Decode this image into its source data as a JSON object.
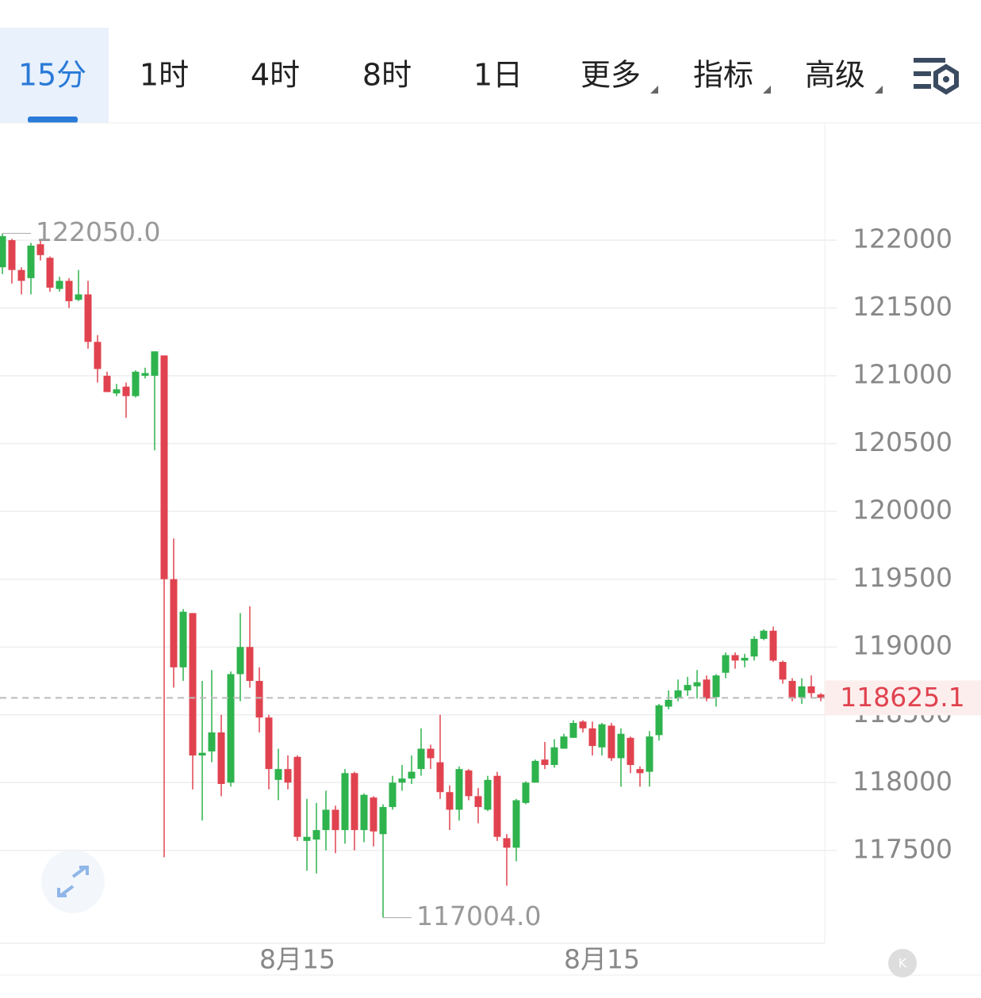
{
  "tabs": [
    "15分",
    "1时",
    "4时",
    "8时",
    "1日",
    "更多",
    "指标",
    "高级"
  ],
  "chart_data": {
    "type": "candlestick",
    "categories": [
      null,
      null,
      null,
      null,
      null,
      null,
      null,
      null,
      null,
      null,
      null,
      null,
      null,
      null,
      null,
      null,
      null,
      null,
      null,
      null,
      null,
      null,
      null,
      null,
      null,
      null,
      null,
      null,
      null,
      null,
      null,
      "8月15",
      null,
      null,
      null,
      null,
      null,
      null,
      null,
      null,
      null,
      null,
      null,
      null,
      null,
      null,
      null,
      null,
      null,
      null,
      null,
      null,
      null,
      null,
      null,
      null,
      null,
      null,
      null,
      null,
      null,
      null,
      null,
      "8月15",
      null,
      null,
      null,
      null,
      null,
      null,
      null,
      null,
      null,
      null,
      null,
      null,
      null,
      null,
      null,
      null,
      null,
      null,
      null,
      null,
      null,
      null,
      null
    ],
    "open": [
      121800,
      122000,
      121780,
      121720,
      121970,
      121870,
      121640,
      121700,
      121560,
      121600,
      121250,
      121000,
      120870,
      120920,
      120850,
      121000,
      121000,
      121150,
      119500,
      118850,
      119250,
      118200,
      118230,
      118370,
      118000,
      118800,
      119000,
      118750,
      118480,
      118020,
      118100,
      118190,
      117570,
      117580,
      117650,
      117800,
      117650,
      118070,
      117650,
      117890,
      117620,
      117820,
      118000,
      118030,
      118100,
      118250,
      118150,
      117930,
      117800,
      118090,
      117900,
      117800,
      118050,
      117590,
      117520,
      117850,
      118000,
      118170,
      118130,
      118250,
      118330,
      118450,
      118400,
      118260,
      118420,
      118180,
      118330,
      118100,
      118080,
      118350,
      118560,
      118620,
      118680,
      118710,
      118760,
      118630,
      118810,
      118940,
      118900,
      118930,
      119060,
      119120,
      118890,
      118750,
      118630,
      118710,
      118650
    ],
    "high": [
      122050,
      122010,
      121800,
      121980,
      122000,
      121880,
      121730,
      121720,
      121780,
      121700,
      121300,
      121030,
      120940,
      120950,
      121040,
      121060,
      121180,
      121150,
      119800,
      119280,
      119250,
      118750,
      118830,
      118500,
      118820,
      119250,
      119300,
      118850,
      118500,
      118250,
      118200,
      118200,
      117880,
      117850,
      117940,
      117830,
      118100,
      118080,
      117920,
      117900,
      117840,
      118050,
      118130,
      118200,
      118400,
      118280,
      118500,
      117980,
      118120,
      118100,
      117960,
      118050,
      118080,
      117620,
      117880,
      118010,
      118170,
      118300,
      118320,
      118360,
      118460,
      118460,
      118450,
      118440,
      118440,
      118400,
      118340,
      118120,
      118380,
      118580,
      118680,
      118760,
      118780,
      118830,
      118790,
      118800,
      118960,
      118960,
      118950,
      119080,
      119130,
      119150,
      118900,
      118770,
      118770,
      118790,
      118660
    ],
    "low": [
      121750,
      121680,
      121600,
      121600,
      121850,
      121620,
      121620,
      121500,
      121550,
      121200,
      120950,
      120880,
      120850,
      120690,
      120840,
      120980,
      120450,
      117450,
      118700,
      118750,
      117950,
      117720,
      118150,
      117900,
      117970,
      118600,
      118700,
      118370,
      117950,
      117870,
      117950,
      117570,
      117350,
      117330,
      117500,
      117480,
      117550,
      117500,
      117560,
      117530,
      117004,
      117800,
      117940,
      117990,
      118050,
      118100,
      117880,
      117650,
      117720,
      117870,
      117700,
      117790,
      117570,
      117240,
      117420,
      117840,
      118000,
      118100,
      118110,
      118250,
      118330,
      118370,
      118200,
      118200,
      118160,
      117970,
      118070,
      117970,
      117970,
      118310,
      118540,
      118600,
      118640,
      118620,
      118600,
      118560,
      118770,
      118840,
      118850,
      118900,
      119050,
      118890,
      118730,
      118600,
      118580,
      118630,
      118600
    ],
    "close": [
      122030,
      121780,
      121700,
      121960,
      121890,
      121650,
      121700,
      121550,
      121600,
      121250,
      121050,
      120880,
      120900,
      120850,
      121030,
      121020,
      121180,
      119500,
      118850,
      119260,
      118200,
      118220,
      118370,
      117990,
      118800,
      119000,
      118750,
      118480,
      118100,
      118100,
      118000,
      117600,
      117600,
      117650,
      117800,
      117650,
      118070,
      117650,
      117910,
      117640,
      117820,
      118000,
      118030,
      118080,
      118250,
      118180,
      117930,
      117800,
      118100,
      117900,
      117820,
      118020,
      117600,
      117520,
      117870,
      118000,
      118160,
      118130,
      118260,
      118340,
      118440,
      118400,
      118270,
      118430,
      118180,
      118360,
      118130,
      118070,
      118340,
      118570,
      118610,
      118680,
      118720,
      118740,
      118620,
      118790,
      118940,
      118900,
      118920,
      119060,
      119120,
      118900,
      118760,
      118620,
      118710,
      118660,
      118625
    ],
    "up_color": "#2eb34d",
    "down_color": "#e0434f",
    "ylim": [
      116815,
      122865
    ],
    "yticks": [
      117500,
      118000,
      118500,
      119000,
      119500,
      120000,
      120500,
      121000,
      121500,
      122000
    ],
    "grid": true,
    "high_marker": {
      "value": 122050,
      "label": "122050.0"
    },
    "low_marker": {
      "value": 117004,
      "label": "117004.0"
    },
    "last_price": 118625.1
  }
}
